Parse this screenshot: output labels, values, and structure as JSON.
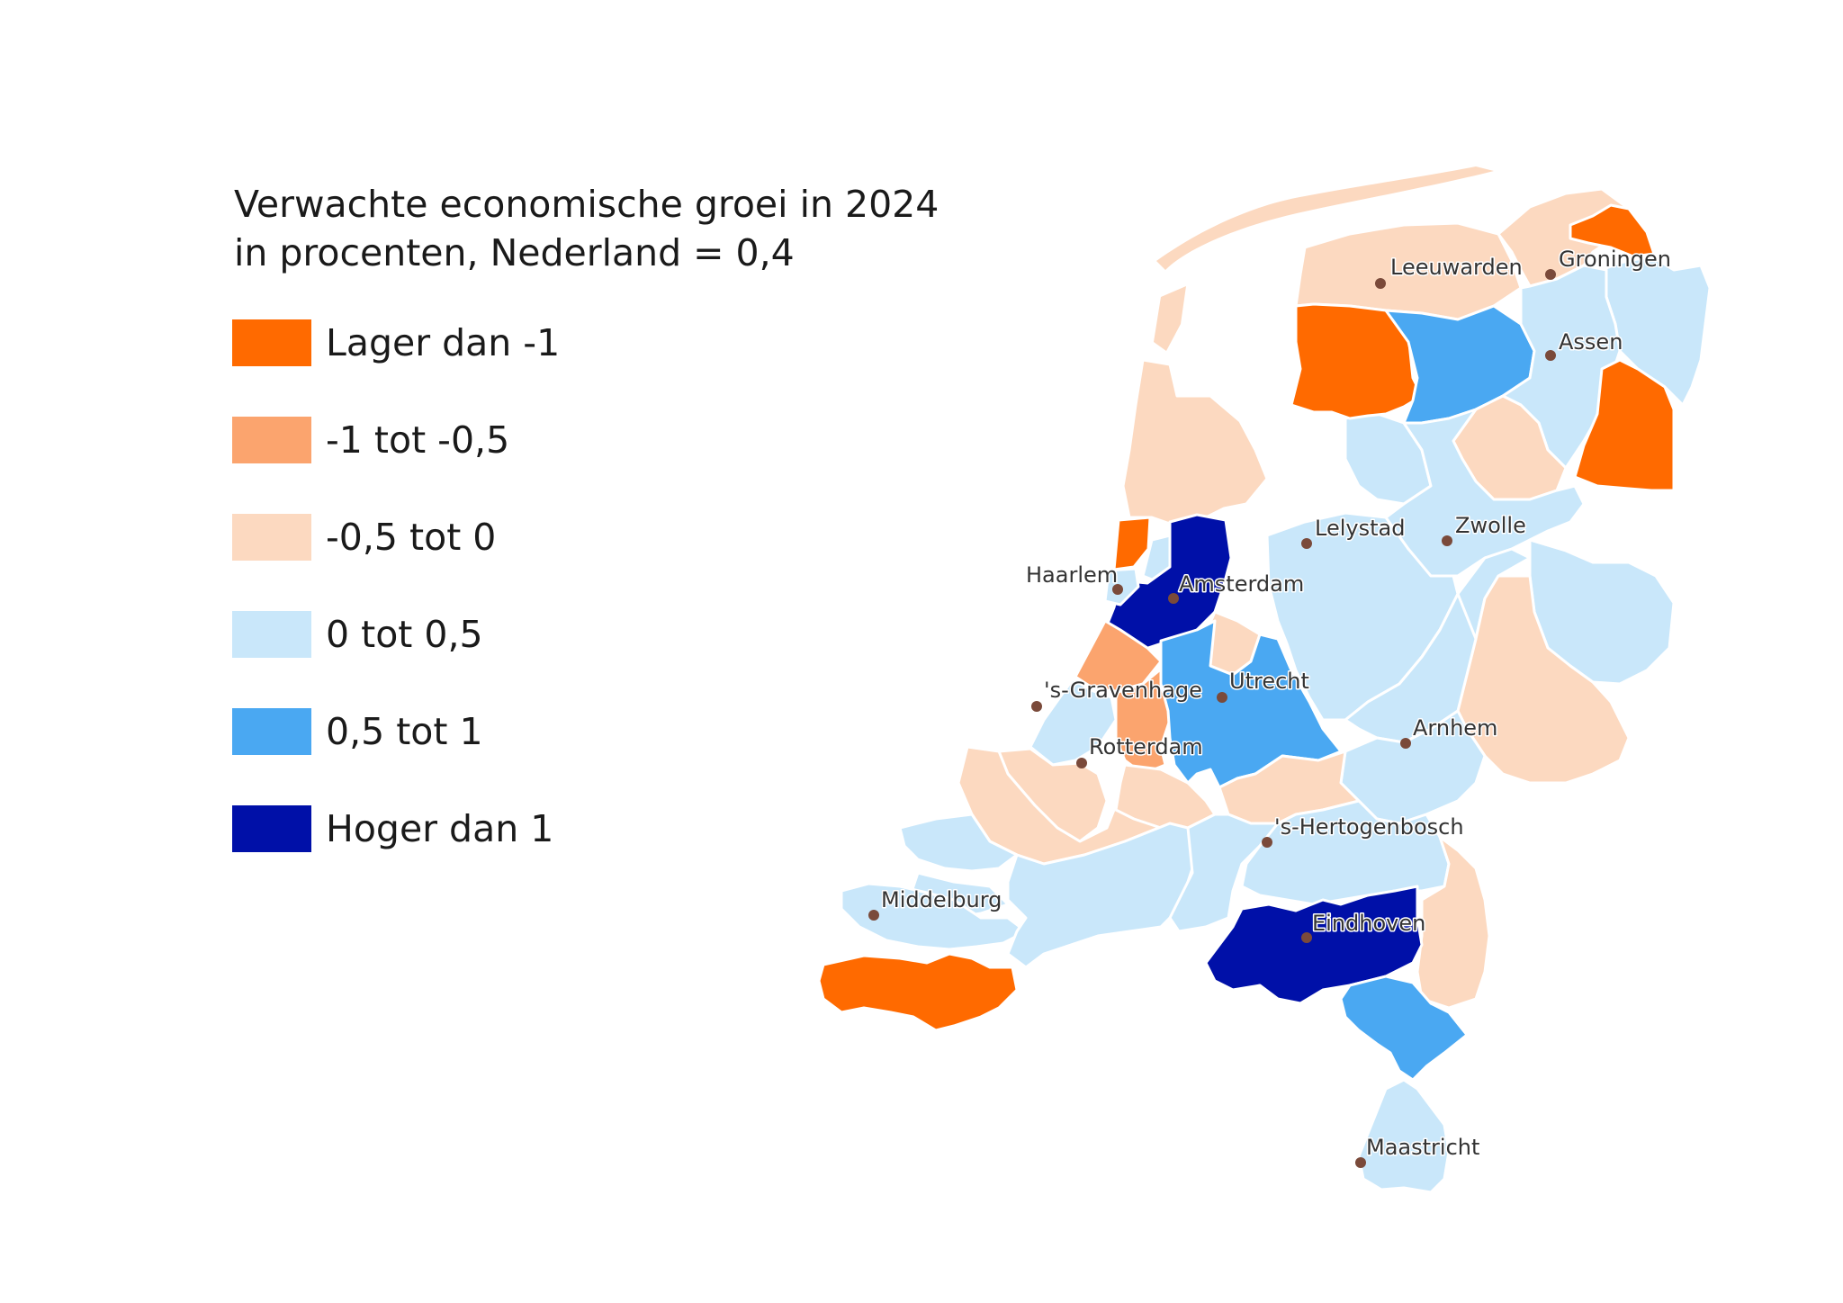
{
  "title": {
    "line1": "Verwachte economische groei in 2024",
    "line2": "in procenten, Nederland = 0,4"
  },
  "legend": [
    {
      "label": "Lager dan -1",
      "color": "#FF6A00"
    },
    {
      "label": "-1 tot -0,5",
      "color": "#FBA46E"
    },
    {
      "label": "-0,5 tot 0",
      "color": "#FCD9C0"
    },
    {
      "label": "0 tot 0,5",
      "color": "#C9E7FA"
    },
    {
      "label": "0,5 tot 1",
      "color": "#4AA8F2"
    },
    {
      "label": "Hoger dan 1",
      "color": "#0010A8"
    }
  ],
  "cities": [
    {
      "name": "Leeuwarden"
    },
    {
      "name": "Groningen"
    },
    {
      "name": "Assen"
    },
    {
      "name": "Lelystad"
    },
    {
      "name": "Zwolle"
    },
    {
      "name": "Haarlem"
    },
    {
      "name": "Amsterdam"
    },
    {
      "name": "Utrecht"
    },
    {
      "name": "'s-Gravenhage"
    },
    {
      "name": "Arnhem"
    },
    {
      "name": "Rotterdam"
    },
    {
      "name": "'s-Hertogenbosch"
    },
    {
      "name": "Middelburg"
    },
    {
      "name": "Eindhoven"
    },
    {
      "name": "Maastricht"
    }
  ]
}
